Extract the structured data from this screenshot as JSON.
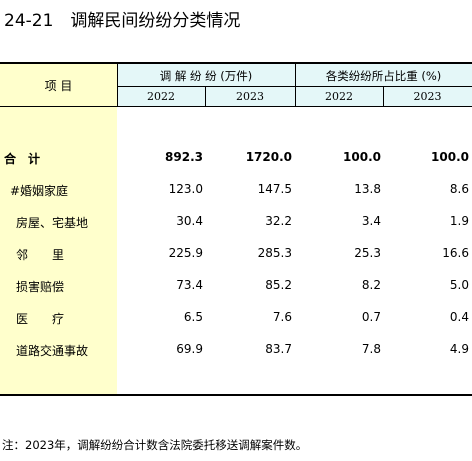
{
  "title": "24-21　调解民间纷纷分类情况",
  "table": {
    "corner": "项  目",
    "groups": [
      "调 解 纷 纷 (万件)",
      "各类纷纷所占比重 (%)"
    ],
    "years": [
      "2022",
      "2023",
      "2022",
      "2023"
    ],
    "rows": [
      [
        "合　计",
        "892.3",
        "1720.0",
        "100.0",
        "100.0"
      ],
      [
        "#婚姻家庭",
        "123.0",
        "147.5",
        "13.8",
        "8.6"
      ],
      [
        "房屋、宅基地",
        "30.4",
        "32.2",
        "3.4",
        "1.9"
      ],
      [
        "邻　　里",
        "225.9",
        "285.3",
        "25.3",
        "16.6"
      ],
      [
        "损害赔偿",
        "73.4",
        "85.2",
        "8.2",
        "5.0"
      ],
      [
        "医　　疗",
        "6.5",
        "7.6",
        "0.7",
        "0.4"
      ],
      [
        "道路交通事故",
        "69.9",
        "83.7",
        "7.8",
        "4.9"
      ]
    ]
  },
  "note": "注：2023年，调解纷纷合计数含法院委托移送调解案件数。"
}
